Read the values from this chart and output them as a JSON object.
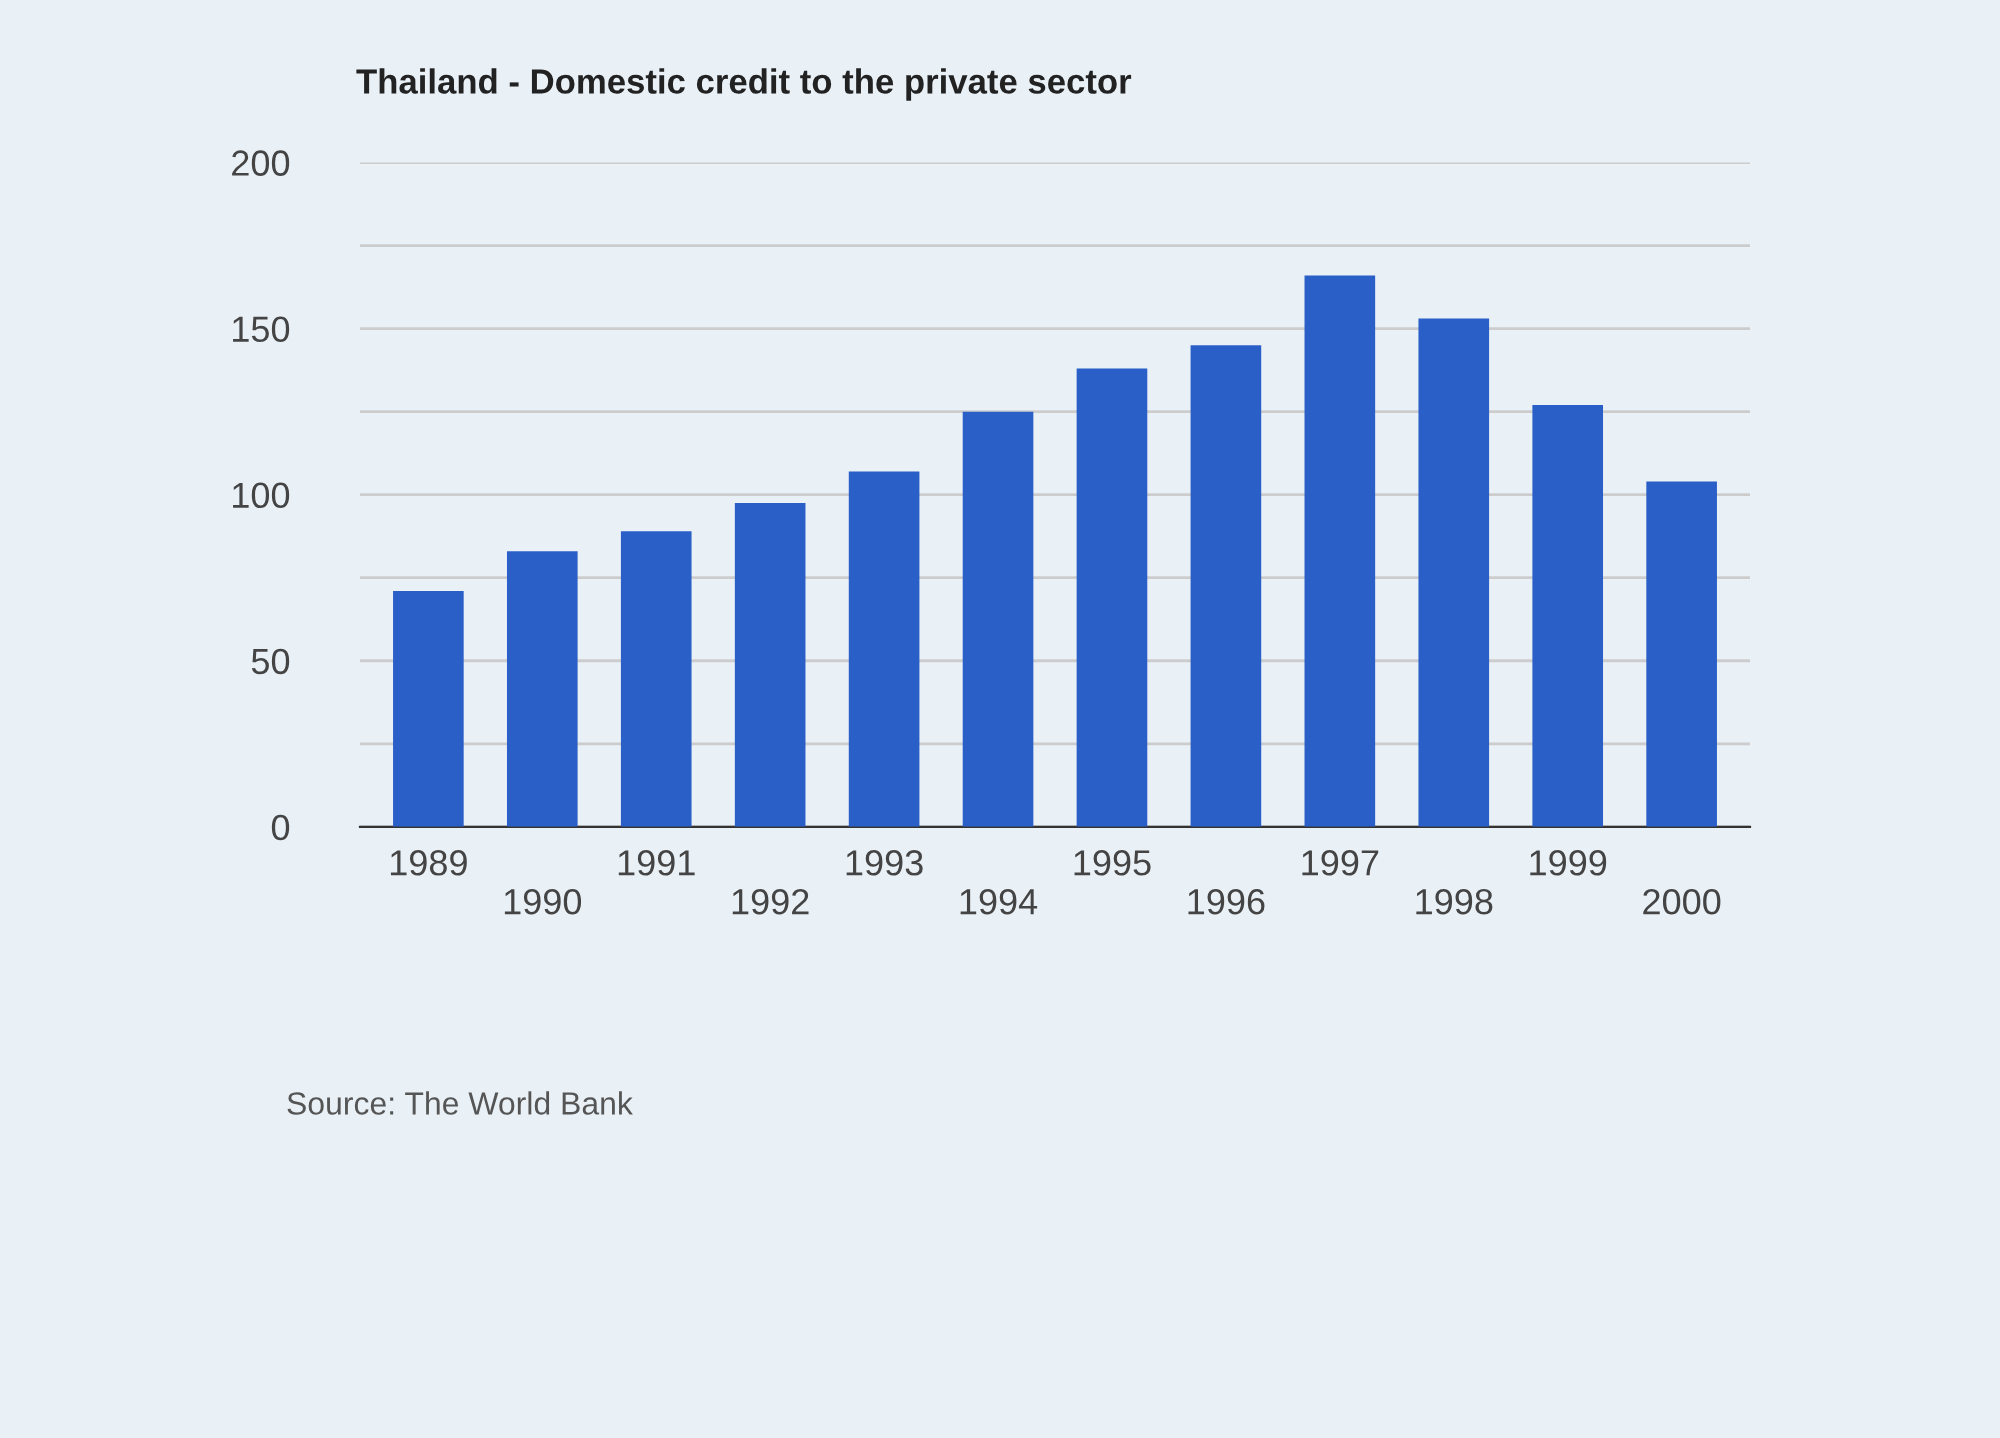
{
  "chart_data": {
    "type": "bar",
    "title": "Thailand - Domestic credit to the private sector",
    "categories": [
      "1989",
      "1990",
      "1991",
      "1992",
      "1993",
      "1994",
      "1995",
      "1996",
      "1997",
      "1998",
      "1999",
      "2000"
    ],
    "values": [
      71,
      83,
      89,
      97.5,
      107,
      125,
      138,
      145,
      166,
      153,
      127,
      104
    ],
    "color": "#2b5fc8",
    "ylim": [
      0,
      200
    ],
    "yticks": [
      0,
      {
        "value": 25,
        "label": null
      },
      50,
      {
        "value": 75,
        "label": null
      },
      100,
      {
        "value": 125,
        "label": null
      },
      150,
      {
        "value": 175,
        "label": null
      },
      200
    ],
    "grid": "y",
    "annotations": [
      "Source: The World Bank"
    ]
  }
}
